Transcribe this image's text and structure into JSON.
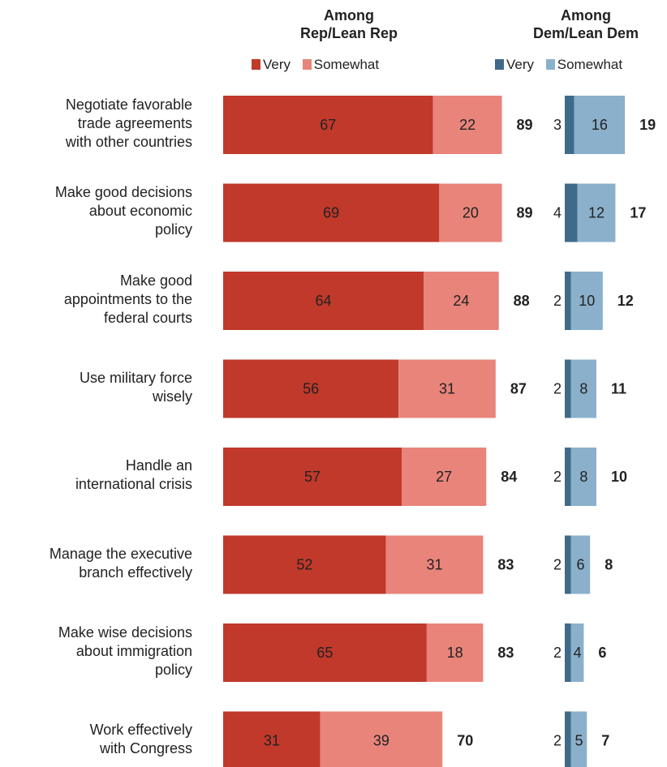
{
  "groups": {
    "rep": {
      "title_line1": "Among",
      "title_line2": "Rep/Lean Rep",
      "legend_very": "Very",
      "legend_somewhat": "Somewhat"
    },
    "dem": {
      "title_line1": "Among",
      "title_line2": "Dem/Lean Dem",
      "legend_very": "Very",
      "legend_somewhat": "Somewhat"
    }
  },
  "colors": {
    "rep_very": "#c0392b",
    "rep_somewhat": "#e8847a",
    "dem_very": "#3f6a8a",
    "dem_somewhat": "#8ab0cb"
  },
  "chart_data": {
    "type": "bar",
    "orientation": "horizontal",
    "stacked": true,
    "categories": [
      [
        "Negotiate favorable",
        "trade agreements",
        "with other countries"
      ],
      [
        "Make good decisions",
        "about economic",
        "policy"
      ],
      [
        "Make good",
        "appointments to the",
        "federal courts"
      ],
      [
        "Use military force",
        "wisely"
      ],
      [
        "Handle an",
        "international crisis"
      ],
      [
        "Manage the executive",
        "branch effectively"
      ],
      [
        "Make wise decisions",
        "about immigration",
        "policy"
      ],
      [
        "Work effectively",
        "with Congress"
      ]
    ],
    "panels": [
      {
        "group": "Rep/Lean Rep",
        "series": [
          {
            "name": "Very",
            "values": [
              67,
              69,
              64,
              56,
              57,
              52,
              65,
              31
            ]
          },
          {
            "name": "Somewhat",
            "values": [
              22,
              20,
              24,
              31,
              27,
              31,
              18,
              39
            ]
          }
        ],
        "totals": [
          89,
          89,
          88,
          87,
          84,
          83,
          83,
          70
        ]
      },
      {
        "group": "Dem/Lean Dem",
        "series": [
          {
            "name": "Very",
            "values": [
              3,
              4,
              2,
              2,
              2,
              2,
              2,
              2
            ]
          },
          {
            "name": "Somewhat",
            "values": [
              16,
              12,
              10,
              8,
              8,
              6,
              4,
              5
            ]
          }
        ],
        "totals": [
          19,
          17,
          12,
          11,
          10,
          8,
          6,
          7
        ]
      }
    ]
  }
}
